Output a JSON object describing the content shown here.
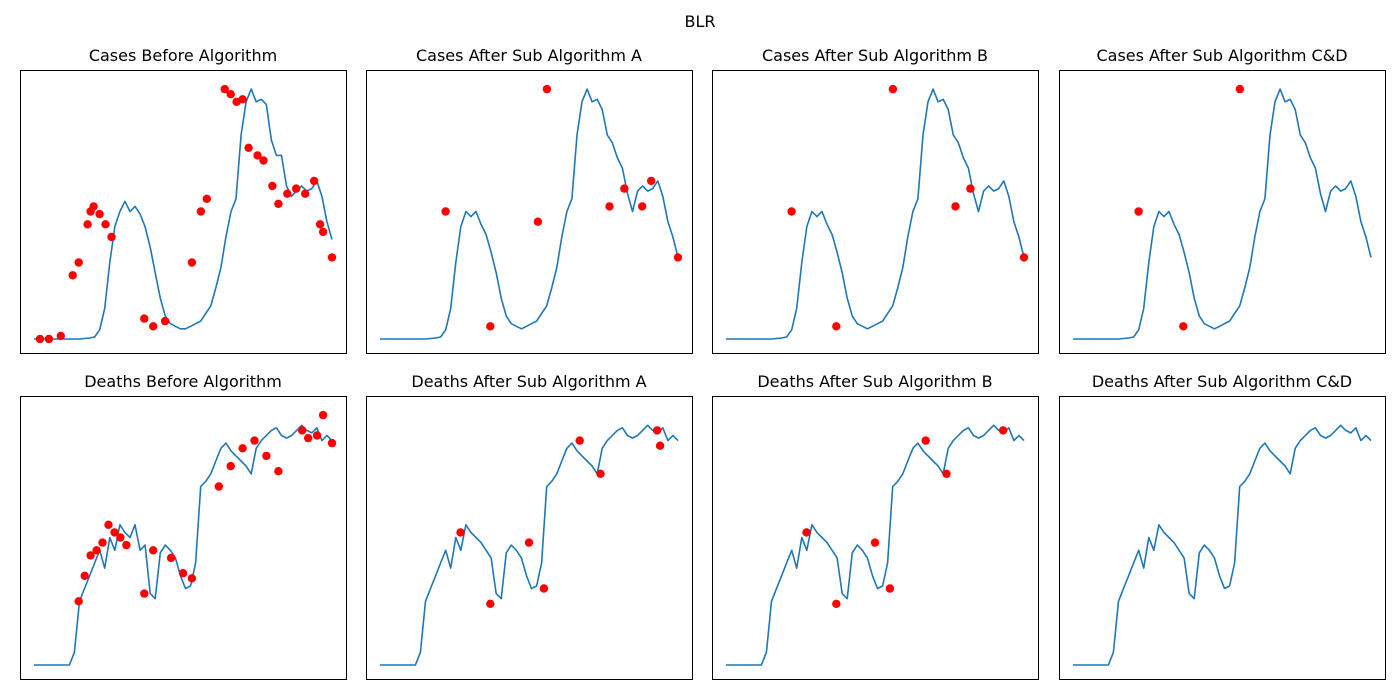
{
  "figure": {
    "title": "BLR"
  },
  "chart_data": [
    {
      "type": "line",
      "title": "Cases Before Algorithm",
      "xlabel": "",
      "ylabel": "",
      "ticks": false,
      "line_color": "#1f77b4",
      "marker_color": "#ff0000",
      "series": [
        {
          "values": [
            0.0,
            0.0,
            0.0,
            0.0,
            0.0,
            0.0,
            0.0,
            0.0,
            0.0,
            0.0,
            0.002,
            0.004,
            0.008,
            0.036,
            0.12,
            0.3,
            0.44,
            0.5,
            0.54,
            0.5,
            0.52,
            0.49,
            0.44,
            0.36,
            0.26,
            0.16,
            0.09,
            0.06,
            0.05,
            0.04,
            0.04,
            0.05,
            0.06,
            0.07,
            0.1,
            0.13,
            0.2,
            0.28,
            0.4,
            0.5,
            0.55,
            0.8,
            0.93,
            0.98,
            0.93,
            0.94,
            0.92,
            0.78,
            0.72,
            0.72,
            0.6,
            0.56,
            0.58,
            0.6,
            0.58,
            0.59,
            0.62,
            0.56,
            0.46,
            0.39
          ]
        }
      ],
      "markers": [
        [
          0.02,
          0.0
        ],
        [
          0.05,
          0.0
        ],
        [
          0.09,
          0.012
        ],
        [
          0.13,
          0.25
        ],
        [
          0.15,
          0.3
        ],
        [
          0.18,
          0.45
        ],
        [
          0.19,
          0.5
        ],
        [
          0.2,
          0.52
        ],
        [
          0.22,
          0.49
        ],
        [
          0.24,
          0.45
        ],
        [
          0.26,
          0.4
        ],
        [
          0.37,
          0.08
        ],
        [
          0.4,
          0.05
        ],
        [
          0.44,
          0.07
        ],
        [
          0.53,
          0.3
        ],
        [
          0.56,
          0.5
        ],
        [
          0.58,
          0.55
        ],
        [
          0.64,
          0.98
        ],
        [
          0.66,
          0.96
        ],
        [
          0.68,
          0.93
        ],
        [
          0.7,
          0.94
        ],
        [
          0.72,
          0.75
        ],
        [
          0.75,
          0.72
        ],
        [
          0.77,
          0.7
        ],
        [
          0.8,
          0.6
        ],
        [
          0.82,
          0.53
        ],
        [
          0.85,
          0.57
        ],
        [
          0.88,
          0.59
        ],
        [
          0.91,
          0.57
        ],
        [
          0.94,
          0.62
        ],
        [
          0.96,
          0.45
        ],
        [
          0.97,
          0.42
        ],
        [
          1.0,
          0.32
        ]
      ]
    },
    {
      "type": "line",
      "title": "Cases After Sub Algorithm A",
      "xlabel": "",
      "ylabel": "",
      "ticks": false,
      "line_color": "#1f77b4",
      "marker_color": "#ff0000",
      "series": [
        {
          "values": [
            0.0,
            0.0,
            0.0,
            0.0,
            0.0,
            0.0,
            0.0,
            0.0,
            0.0,
            0.0,
            0.002,
            0.004,
            0.008,
            0.036,
            0.12,
            0.3,
            0.44,
            0.5,
            0.48,
            0.5,
            0.45,
            0.41,
            0.34,
            0.26,
            0.16,
            0.09,
            0.06,
            0.05,
            0.04,
            0.05,
            0.06,
            0.07,
            0.1,
            0.13,
            0.2,
            0.28,
            0.4,
            0.5,
            0.55,
            0.8,
            0.93,
            0.98,
            0.93,
            0.94,
            0.9,
            0.8,
            0.77,
            0.71,
            0.67,
            0.57,
            0.5,
            0.58,
            0.6,
            0.58,
            0.59,
            0.62,
            0.56,
            0.46,
            0.4,
            0.32
          ]
        }
      ],
      "markers": [
        [
          0.22,
          0.5
        ],
        [
          0.37,
          0.05
        ],
        [
          0.53,
          0.46
        ],
        [
          0.56,
          0.98
        ],
        [
          0.77,
          0.52
        ],
        [
          0.82,
          0.59
        ],
        [
          0.88,
          0.52
        ],
        [
          0.91,
          0.62
        ],
        [
          1.0,
          0.32
        ]
      ]
    },
    {
      "type": "line",
      "title": "Cases After Sub Algorithm B",
      "xlabel": "",
      "ylabel": "",
      "ticks": false,
      "line_color": "#1f77b4",
      "marker_color": "#ff0000",
      "series": [
        {
          "values": [
            0.0,
            0.0,
            0.0,
            0.0,
            0.0,
            0.0,
            0.0,
            0.0,
            0.0,
            0.0,
            0.002,
            0.004,
            0.008,
            0.036,
            0.12,
            0.3,
            0.44,
            0.5,
            0.48,
            0.5,
            0.45,
            0.41,
            0.34,
            0.26,
            0.16,
            0.09,
            0.06,
            0.05,
            0.04,
            0.05,
            0.06,
            0.07,
            0.1,
            0.13,
            0.2,
            0.28,
            0.4,
            0.5,
            0.55,
            0.8,
            0.93,
            0.98,
            0.93,
            0.94,
            0.9,
            0.8,
            0.77,
            0.71,
            0.67,
            0.57,
            0.5,
            0.58,
            0.6,
            0.58,
            0.59,
            0.62,
            0.56,
            0.46,
            0.4,
            0.32
          ]
        }
      ],
      "markers": [
        [
          0.22,
          0.5
        ],
        [
          0.37,
          0.05
        ],
        [
          0.56,
          0.98
        ],
        [
          0.77,
          0.52
        ],
        [
          0.82,
          0.59
        ],
        [
          1.0,
          0.32
        ]
      ]
    },
    {
      "type": "line",
      "title": "Cases After Sub Algorithm C&D",
      "xlabel": "",
      "ylabel": "",
      "ticks": false,
      "line_color": "#1f77b4",
      "marker_color": "#ff0000",
      "series": [
        {
          "values": [
            0.0,
            0.0,
            0.0,
            0.0,
            0.0,
            0.0,
            0.0,
            0.0,
            0.0,
            0.0,
            0.002,
            0.004,
            0.008,
            0.036,
            0.12,
            0.3,
            0.44,
            0.5,
            0.48,
            0.5,
            0.45,
            0.41,
            0.34,
            0.26,
            0.16,
            0.09,
            0.06,
            0.05,
            0.04,
            0.05,
            0.06,
            0.07,
            0.1,
            0.13,
            0.2,
            0.28,
            0.4,
            0.5,
            0.55,
            0.8,
            0.93,
            0.98,
            0.93,
            0.94,
            0.9,
            0.8,
            0.77,
            0.71,
            0.67,
            0.57,
            0.5,
            0.58,
            0.6,
            0.58,
            0.59,
            0.62,
            0.56,
            0.46,
            0.4,
            0.32
          ]
        }
      ],
      "markers": [
        [
          0.22,
          0.5
        ],
        [
          0.37,
          0.05
        ],
        [
          0.56,
          0.98
        ]
      ]
    },
    {
      "type": "line",
      "title": "Deaths Before Algorithm",
      "xlabel": "",
      "ylabel": "",
      "ticks": false,
      "line_color": "#1f77b4",
      "marker_color": "#ff0000",
      "series": [
        {
          "values": [
            0.0,
            0.0,
            0.0,
            0.0,
            0.0,
            0.0,
            0.0,
            0.0,
            0.05,
            0.25,
            0.3,
            0.35,
            0.4,
            0.45,
            0.38,
            0.5,
            0.45,
            0.55,
            0.52,
            0.5,
            0.55,
            0.45,
            0.47,
            0.28,
            0.26,
            0.44,
            0.47,
            0.45,
            0.42,
            0.35,
            0.3,
            0.31,
            0.4,
            0.7,
            0.72,
            0.75,
            0.8,
            0.85,
            0.87,
            0.84,
            0.82,
            0.8,
            0.78,
            0.75,
            0.85,
            0.88,
            0.9,
            0.92,
            0.93,
            0.9,
            0.89,
            0.9,
            0.92,
            0.94,
            0.92,
            0.91,
            0.93,
            0.88,
            0.9,
            0.88
          ]
        }
      ],
      "markers": [
        [
          0.15,
          0.25
        ],
        [
          0.17,
          0.35
        ],
        [
          0.19,
          0.43
        ],
        [
          0.21,
          0.45
        ],
        [
          0.23,
          0.48
        ],
        [
          0.25,
          0.55
        ],
        [
          0.27,
          0.52
        ],
        [
          0.29,
          0.5
        ],
        [
          0.31,
          0.47
        ],
        [
          0.37,
          0.28
        ],
        [
          0.4,
          0.45
        ],
        [
          0.46,
          0.42
        ],
        [
          0.5,
          0.36
        ],
        [
          0.53,
          0.34
        ],
        [
          0.62,
          0.7
        ],
        [
          0.66,
          0.78
        ],
        [
          0.7,
          0.85
        ],
        [
          0.74,
          0.88
        ],
        [
          0.78,
          0.82
        ],
        [
          0.82,
          0.76
        ],
        [
          0.9,
          0.92
        ],
        [
          0.92,
          0.89
        ],
        [
          0.95,
          0.9
        ],
        [
          0.97,
          0.98
        ],
        [
          1.0,
          0.87
        ]
      ]
    },
    {
      "type": "line",
      "title": "Deaths After Sub Algorithm A",
      "xlabel": "",
      "ylabel": "",
      "ticks": false,
      "line_color": "#1f77b4",
      "marker_color": "#ff0000",
      "series": [
        {
          "values": [
            0.0,
            0.0,
            0.0,
            0.0,
            0.0,
            0.0,
            0.0,
            0.0,
            0.05,
            0.25,
            0.3,
            0.35,
            0.4,
            0.45,
            0.38,
            0.5,
            0.45,
            0.55,
            0.52,
            0.5,
            0.48,
            0.45,
            0.42,
            0.28,
            0.26,
            0.44,
            0.47,
            0.45,
            0.42,
            0.35,
            0.3,
            0.31,
            0.4,
            0.7,
            0.72,
            0.75,
            0.8,
            0.85,
            0.87,
            0.84,
            0.82,
            0.8,
            0.78,
            0.75,
            0.85,
            0.88,
            0.9,
            0.92,
            0.93,
            0.9,
            0.89,
            0.9,
            0.92,
            0.94,
            0.92,
            0.91,
            0.93,
            0.88,
            0.9,
            0.88
          ]
        }
      ],
      "markers": [
        [
          0.27,
          0.52
        ],
        [
          0.37,
          0.24
        ],
        [
          0.5,
          0.48
        ],
        [
          0.55,
          0.3
        ],
        [
          0.67,
          0.88
        ],
        [
          0.74,
          0.75
        ],
        [
          0.93,
          0.92
        ],
        [
          0.94,
          0.86
        ]
      ]
    },
    {
      "type": "line",
      "title": "Deaths After Sub Algorithm B",
      "xlabel": "",
      "ylabel": "",
      "ticks": false,
      "line_color": "#1f77b4",
      "marker_color": "#ff0000",
      "series": [
        {
          "values": [
            0.0,
            0.0,
            0.0,
            0.0,
            0.0,
            0.0,
            0.0,
            0.0,
            0.05,
            0.25,
            0.3,
            0.35,
            0.4,
            0.45,
            0.38,
            0.5,
            0.45,
            0.55,
            0.52,
            0.5,
            0.48,
            0.45,
            0.42,
            0.28,
            0.26,
            0.44,
            0.47,
            0.45,
            0.42,
            0.35,
            0.3,
            0.31,
            0.4,
            0.7,
            0.72,
            0.75,
            0.8,
            0.85,
            0.87,
            0.84,
            0.82,
            0.8,
            0.78,
            0.75,
            0.85,
            0.88,
            0.9,
            0.92,
            0.93,
            0.9,
            0.89,
            0.9,
            0.92,
            0.94,
            0.92,
            0.91,
            0.93,
            0.88,
            0.9,
            0.88
          ]
        }
      ],
      "markers": [
        [
          0.27,
          0.52
        ],
        [
          0.37,
          0.24
        ],
        [
          0.5,
          0.48
        ],
        [
          0.55,
          0.3
        ],
        [
          0.67,
          0.88
        ],
        [
          0.74,
          0.75
        ],
        [
          0.93,
          0.92
        ]
      ]
    },
    {
      "type": "line",
      "title": "Deaths After Sub Algorithm C&D",
      "xlabel": "",
      "ylabel": "",
      "ticks": false,
      "line_color": "#1f77b4",
      "marker_color": "#ff0000",
      "series": [
        {
          "values": [
            0.0,
            0.0,
            0.0,
            0.0,
            0.0,
            0.0,
            0.0,
            0.0,
            0.05,
            0.25,
            0.3,
            0.35,
            0.4,
            0.45,
            0.38,
            0.5,
            0.45,
            0.55,
            0.52,
            0.5,
            0.48,
            0.45,
            0.42,
            0.28,
            0.26,
            0.44,
            0.47,
            0.45,
            0.42,
            0.35,
            0.3,
            0.31,
            0.4,
            0.7,
            0.72,
            0.75,
            0.8,
            0.85,
            0.87,
            0.84,
            0.82,
            0.8,
            0.78,
            0.75,
            0.85,
            0.88,
            0.9,
            0.92,
            0.93,
            0.9,
            0.89,
            0.9,
            0.92,
            0.94,
            0.92,
            0.91,
            0.93,
            0.88,
            0.9,
            0.88
          ]
        }
      ],
      "markers": []
    }
  ]
}
